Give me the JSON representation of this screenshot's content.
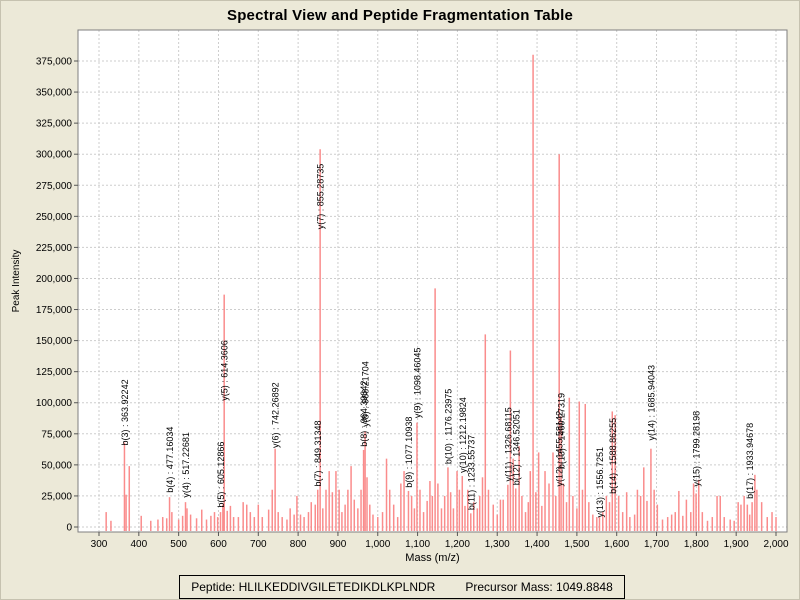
{
  "title": "Spectral View and Peptide Fragmentation Table",
  "footer": {
    "peptide": "Peptide: HLILKEDDIVGILETEDIKDLKPLNDR",
    "precursor": "Precursor Mass: 1049.8848"
  },
  "colors": {
    "background": "#ece9d8",
    "plot_background": "#ffffff",
    "grid": "#cdcdcd",
    "axis": "#7f7f7f",
    "tick": "#555555",
    "peak": "#fa8c8c",
    "text": "#000000"
  },
  "chart_data": {
    "type": "bar",
    "title": "Spectral View and Peptide Fragmentation Table",
    "xlabel": "Mass (m/z)",
    "ylabel": "Peak Intensity",
    "xlim": [
      250,
      2030
    ],
    "ylim": [
      0,
      400000
    ],
    "grid": "dashed",
    "legend": "none",
    "x_ticks": [
      {
        "value": 300,
        "label": "300"
      },
      {
        "value": 400,
        "label": "400"
      },
      {
        "value": 500,
        "label": "500"
      },
      {
        "value": 600,
        "label": "600"
      },
      {
        "value": 700,
        "label": "700"
      },
      {
        "value": 800,
        "label": "800"
      },
      {
        "value": 900,
        "label": "900"
      },
      {
        "value": 1000,
        "label": "1,000"
      },
      {
        "value": 1100,
        "label": "1,100"
      },
      {
        "value": 1200,
        "label": "1,200"
      },
      {
        "value": 1300,
        "label": "1,300"
      },
      {
        "value": 1400,
        "label": "1,400"
      },
      {
        "value": 1500,
        "label": "1,500"
      },
      {
        "value": 1600,
        "label": "1,600"
      },
      {
        "value": 1700,
        "label": "1,700"
      },
      {
        "value": 1800,
        "label": "1,800"
      },
      {
        "value": 1900,
        "label": "1,900"
      },
      {
        "value": 2000,
        "label": "2,000"
      }
    ],
    "y_ticks": [
      {
        "value": 0,
        "label": "0"
      },
      {
        "value": 25000,
        "label": "25,000"
      },
      {
        "value": 50000,
        "label": "50,000"
      },
      {
        "value": 75000,
        "label": "75,000"
      },
      {
        "value": 100000,
        "label": "100,000"
      },
      {
        "value": 125000,
        "label": "125,000"
      },
      {
        "value": 150000,
        "label": "150,000"
      },
      {
        "value": 175000,
        "label": "175,000"
      },
      {
        "value": 200000,
        "label": "200,000"
      },
      {
        "value": 225000,
        "label": "225,000"
      },
      {
        "value": 250000,
        "label": "250,000"
      },
      {
        "value": 275000,
        "label": "275,000"
      },
      {
        "value": 300000,
        "label": "300,000"
      },
      {
        "value": 325000,
        "label": "325,000"
      },
      {
        "value": 350000,
        "label": "350,000"
      },
      {
        "value": 375000,
        "label": "375,000"
      }
    ],
    "peaks": [
      [
        318,
        12000
      ],
      [
        330,
        5000
      ],
      [
        363.92,
        68000
      ],
      [
        368,
        26000
      ],
      [
        376,
        49000
      ],
      [
        406,
        9000
      ],
      [
        430,
        5000
      ],
      [
        448,
        6000
      ],
      [
        460,
        8000
      ],
      [
        470,
        7000
      ],
      [
        477.16,
        24000
      ],
      [
        483,
        12000
      ],
      [
        500,
        6000
      ],
      [
        510,
        9000
      ],
      [
        517.23,
        20000
      ],
      [
        521,
        15000
      ],
      [
        530,
        10000
      ],
      [
        545,
        7000
      ],
      [
        558,
        14000
      ],
      [
        570,
        6000
      ],
      [
        581,
        9000
      ],
      [
        590,
        12000
      ],
      [
        598,
        8000
      ],
      [
        605.13,
        12000
      ],
      [
        611,
        18000
      ],
      [
        614.36,
        187000
      ],
      [
        622,
        13000
      ],
      [
        630,
        17000
      ],
      [
        638,
        8000
      ],
      [
        650,
        8000
      ],
      [
        662,
        20000
      ],
      [
        671,
        18000
      ],
      [
        680,
        12000
      ],
      [
        690,
        8000
      ],
      [
        700,
        18000
      ],
      [
        710,
        8000
      ],
      [
        726,
        14000
      ],
      [
        735,
        30000
      ],
      [
        742.27,
        63000
      ],
      [
        750,
        12000
      ],
      [
        760,
        8000
      ],
      [
        772,
        6000
      ],
      [
        780,
        15000
      ],
      [
        790,
        10000
      ],
      [
        797,
        25000
      ],
      [
        806,
        10000
      ],
      [
        815,
        8000
      ],
      [
        826,
        12000
      ],
      [
        833,
        20000
      ],
      [
        843,
        18000
      ],
      [
        849.31,
        30000
      ],
      [
        855.29,
        304000
      ],
      [
        862,
        15000
      ],
      [
        870,
        30000
      ],
      [
        878,
        45000
      ],
      [
        886,
        28000
      ],
      [
        895,
        45000
      ],
      [
        903,
        30000
      ],
      [
        910,
        12000
      ],
      [
        918,
        18000
      ],
      [
        925,
        30000
      ],
      [
        933,
        49000
      ],
      [
        941,
        22000
      ],
      [
        950,
        15000
      ],
      [
        958,
        30000
      ],
      [
        964.4,
        62000
      ],
      [
        968.22,
        77000
      ],
      [
        973,
        40000
      ],
      [
        980,
        18000
      ],
      [
        988,
        10000
      ],
      [
        1000,
        8000
      ],
      [
        1012,
        12000
      ],
      [
        1022,
        55000
      ],
      [
        1030,
        30000
      ],
      [
        1040,
        18000
      ],
      [
        1050,
        8000
      ],
      [
        1058,
        35000
      ],
      [
        1066,
        45000
      ],
      [
        1077.11,
        29000
      ],
      [
        1085,
        25000
      ],
      [
        1092,
        15000
      ],
      [
        1098.46,
        84000
      ],
      [
        1106,
        30000
      ],
      [
        1115,
        12000
      ],
      [
        1124,
        21000
      ],
      [
        1131,
        37000
      ],
      [
        1137,
        25000
      ],
      [
        1144,
        192000
      ],
      [
        1151,
        35000
      ],
      [
        1160,
        15000
      ],
      [
        1168,
        25000
      ],
      [
        1176.24,
        48000
      ],
      [
        1183,
        28000
      ],
      [
        1190,
        15000
      ],
      [
        1199,
        45000
      ],
      [
        1205,
        30000
      ],
      [
        1212.2,
        41000
      ],
      [
        1219,
        17000
      ],
      [
        1226,
        30000
      ],
      [
        1233.56,
        11000
      ],
      [
        1241,
        20000
      ],
      [
        1250,
        15000
      ],
      [
        1256,
        25000
      ],
      [
        1263,
        40000
      ],
      [
        1270,
        155000
      ],
      [
        1278,
        30000
      ],
      [
        1290,
        18000
      ],
      [
        1300,
        10000
      ],
      [
        1308,
        22000
      ],
      [
        1315,
        22000
      ],
      [
        1326.68,
        34000
      ],
      [
        1333,
        142000
      ],
      [
        1340,
        55000
      ],
      [
        1346.52,
        31000
      ],
      [
        1355,
        65000
      ],
      [
        1362,
        25000
      ],
      [
        1371,
        12000
      ],
      [
        1378,
        20000
      ],
      [
        1383,
        45000
      ],
      [
        1390,
        380000
      ],
      [
        1397,
        28000
      ],
      [
        1404,
        60000
      ],
      [
        1412,
        17000
      ],
      [
        1420,
        45000
      ],
      [
        1430,
        35000
      ],
      [
        1440,
        60000
      ],
      [
        1447,
        25000
      ],
      [
        1455.58,
        300000
      ],
      [
        1460.27,
        89000
      ],
      [
        1466,
        35000
      ],
      [
        1474,
        20000
      ],
      [
        1481,
        104000
      ],
      [
        1490,
        25000
      ],
      [
        1500,
        15000
      ],
      [
        1506,
        101000
      ],
      [
        1514,
        30000
      ],
      [
        1521,
        99000
      ],
      [
        1530,
        20000
      ],
      [
        1540,
        10000
      ],
      [
        1550,
        8000
      ],
      [
        1556.73,
        8000
      ],
      [
        1565,
        12000
      ],
      [
        1574,
        25000
      ],
      [
        1582,
        20000
      ],
      [
        1588.86,
        93000
      ],
      [
        1596,
        90000
      ],
      [
        1605,
        25000
      ],
      [
        1615,
        12000
      ],
      [
        1625,
        28000
      ],
      [
        1633,
        8000
      ],
      [
        1645,
        10000
      ],
      [
        1652,
        30000
      ],
      [
        1660,
        25000
      ],
      [
        1668,
        48000
      ],
      [
        1676,
        21000
      ],
      [
        1685.94,
        63000
      ],
      [
        1694,
        30000
      ],
      [
        1702,
        18000
      ],
      [
        1715,
        6000
      ],
      [
        1728,
        8000
      ],
      [
        1738,
        10000
      ],
      [
        1747,
        12000
      ],
      [
        1756,
        29000
      ],
      [
        1766,
        9000
      ],
      [
        1775,
        22000
      ],
      [
        1786,
        12000
      ],
      [
        1793,
        35000
      ],
      [
        1799.28,
        27000
      ],
      [
        1806,
        38000
      ],
      [
        1815,
        12000
      ],
      [
        1828,
        5000
      ],
      [
        1840,
        8000
      ],
      [
        1852,
        25000
      ],
      [
        1860,
        25000
      ],
      [
        1870,
        8000
      ],
      [
        1885,
        6000
      ],
      [
        1895,
        5000
      ],
      [
        1905,
        20000
      ],
      [
        1912,
        18000
      ],
      [
        1920,
        25000
      ],
      [
        1928,
        18000
      ],
      [
        1933.95,
        10000
      ],
      [
        1940,
        20000
      ],
      [
        1947,
        42000
      ],
      [
        1952,
        30000
      ],
      [
        1964,
        20000
      ],
      [
        1978,
        8000
      ],
      [
        1990,
        12000
      ],
      [
        2000,
        8000
      ]
    ],
    "annotations": [
      {
        "text": "b(3) : 363.92242",
        "mz": 363.92,
        "label_base": 64000
      },
      {
        "text": "b(4) : 477.16034",
        "mz": 477.16,
        "label_base": 26000
      },
      {
        "text": "y(4) : 517.22681",
        "mz": 517.23,
        "label_base": 22000
      },
      {
        "text": "b(5) : 605.12866",
        "mz": 605.13,
        "label_base": 14000
      },
      {
        "text": "y(5) : 614.3606",
        "mz": 614.36,
        "label_base": 100000
      },
      {
        "text": "y(6) : 742.26892",
        "mz": 742.27,
        "label_base": 62000
      },
      {
        "text": "b(7) : 849.31348",
        "mz": 849.31,
        "label_base": 31000
      },
      {
        "text": "y(7) : 855.28735",
        "mz": 855.29,
        "label_base": 238000
      },
      {
        "text": "b(8) : 964.39642",
        "mz": 964.4,
        "label_base": 63000
      },
      {
        "text": "y(8) : 968.21704",
        "mz": 968.22,
        "label_base": 79000
      },
      {
        "text": "b(9) : 1077.10938",
        "mz": 1077.11,
        "label_base": 30000
      },
      {
        "text": "y(9) : 1098.46045",
        "mz": 1098.46,
        "label_base": 86000
      },
      {
        "text": "b(10) : 1176.23975",
        "mz": 1176.24,
        "label_base": 49000
      },
      {
        "text": "y(10) : 1212.19824",
        "mz": 1212.2,
        "label_base": 42000
      },
      {
        "text": "b(11) : 1233.55737",
        "mz": 1233.56,
        "label_base": 12000
      },
      {
        "text": "y(11) : 1326.68115",
        "mz": 1326.68,
        "label_base": 35000
      },
      {
        "text": "b(12) : 1346.52051",
        "mz": 1346.52,
        "label_base": 32000
      },
      {
        "text": "y(12) : 1455.58142",
        "mz": 1455.58,
        "label_base": 31000
      },
      {
        "text": "b(13) : 1460.27319",
        "mz": 1460.27,
        "label_base": 45000
      },
      {
        "text": "y(13) : 1556.7251",
        "mz": 1556.73,
        "label_base": 6000
      },
      {
        "text": "b(14) : 1588.86255",
        "mz": 1588.86,
        "label_base": 25000
      },
      {
        "text": "y(14) : 1685.94043",
        "mz": 1685.94,
        "label_base": 68000
      },
      {
        "text": "y(15) : 1799.28198",
        "mz": 1799.28,
        "label_base": 31000
      },
      {
        "text": "b(17) : 1933.94678",
        "mz": 1933.95,
        "label_base": 21000
      }
    ]
  }
}
